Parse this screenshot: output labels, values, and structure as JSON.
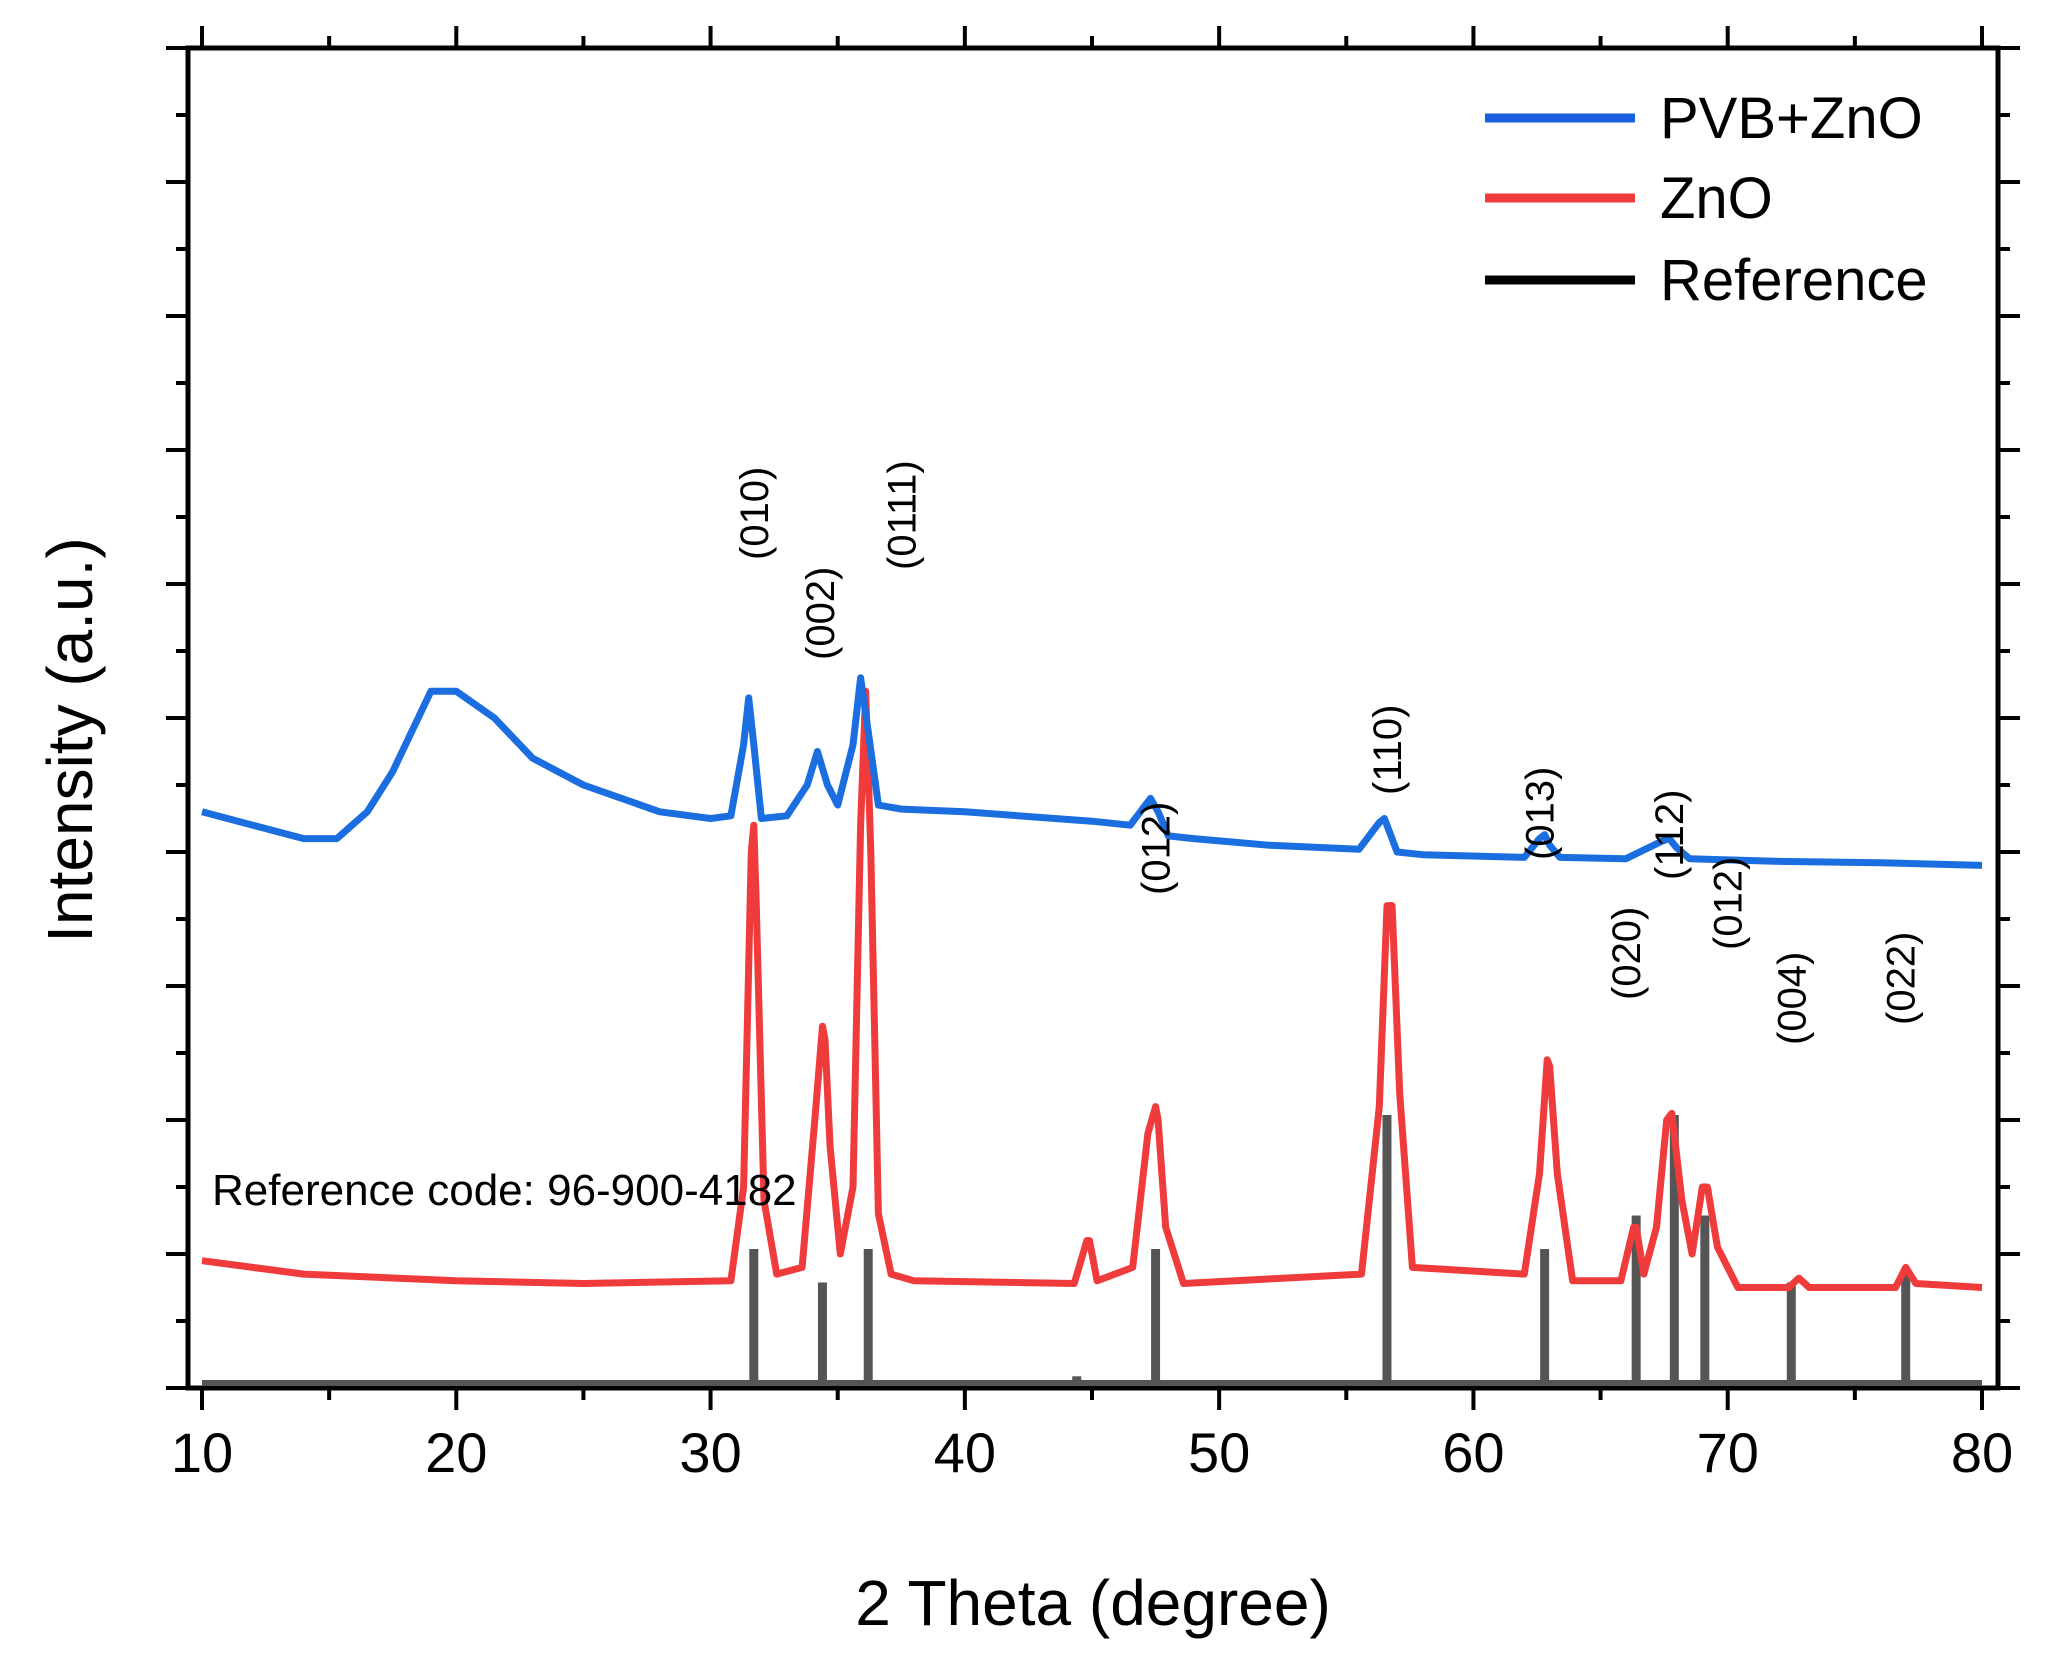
{
  "chart_data": {
    "type": "line",
    "xlabel": "2 Theta (degree)",
    "ylabel": "Intensity (a.u.)",
    "xlim": [
      10,
      80
    ],
    "x_ticks": [
      "10",
      "20",
      "30",
      "40",
      "50",
      "60",
      "70",
      "80"
    ],
    "legend_position": "top-right",
    "legend": [
      {
        "name": "PVB+ZnO",
        "color": "#1a5fe0"
      },
      {
        "name": "ZnO",
        "color": "#ef3b3b"
      },
      {
        "name": "Reference",
        "color": "#000000"
      }
    ],
    "series": [
      {
        "name": "PVB+ZnO",
        "color": "#1a6ee0",
        "x": [
          10,
          12,
          14,
          15.3,
          16.5,
          17.5,
          19,
          20,
          21.5,
          23,
          25,
          28,
          30,
          30.8,
          31.3,
          31.5,
          31.7,
          32,
          33,
          33.8,
          34.2,
          34.6,
          35,
          35.6,
          35.9,
          36.2,
          36.6,
          37.5,
          40,
          45,
          46.5,
          47.3,
          47.6,
          48,
          49,
          52,
          55.5,
          56.3,
          56.5,
          56.7,
          57,
          58,
          62,
          62.6,
          62.8,
          63,
          63.4,
          66,
          67.4,
          67.7,
          68,
          68.5,
          72,
          76,
          80
        ],
        "y": [
          4.3,
          4.2,
          4.1,
          4.1,
          4.3,
          4.6,
          5.2,
          5.2,
          5.0,
          4.7,
          4.5,
          4.3,
          4.25,
          4.27,
          4.8,
          5.15,
          4.8,
          4.25,
          4.27,
          4.5,
          4.75,
          4.5,
          4.35,
          4.8,
          5.3,
          4.9,
          4.35,
          4.32,
          4.3,
          4.23,
          4.2,
          4.4,
          4.3,
          4.12,
          4.1,
          4.05,
          4.02,
          4.22,
          4.25,
          4.15,
          4.0,
          3.98,
          3.96,
          4.1,
          4.13,
          4.05,
          3.96,
          3.95,
          4.08,
          4.1,
          4.03,
          3.95,
          3.93,
          3.92,
          3.9
        ]
      },
      {
        "name": "ZnO",
        "color": "#ef3b3b",
        "x": [
          10,
          14,
          20,
          25,
          30.8,
          31.3,
          31.6,
          31.7,
          31.8,
          32.1,
          32.6,
          33.6,
          34.1,
          34.4,
          34.5,
          34.7,
          35.1,
          35.6,
          35.9,
          36.1,
          36.3,
          36.6,
          37.1,
          38,
          44.3,
          44.8,
          44.9,
          45.2,
          46.6,
          47.2,
          47.5,
          47.6,
          47.9,
          48.6,
          55.6,
          56.3,
          56.6,
          56.8,
          57.1,
          57.6,
          62,
          62.6,
          62.9,
          63,
          63.3,
          63.9,
          65.8,
          66.3,
          66.4,
          66.7,
          67.2,
          67.6,
          67.8,
          68.2,
          68.6,
          69,
          69.2,
          69.6,
          70.4,
          72.4,
          72.8,
          73.2,
          76.6,
          77,
          77.4,
          80
        ],
        "y": [
          0.95,
          0.85,
          0.8,
          0.78,
          0.8,
          1.5,
          4.0,
          4.2,
          3.6,
          1.4,
          0.85,
          0.9,
          2.0,
          2.7,
          2.6,
          1.8,
          1.0,
          1.5,
          4.2,
          5.2,
          4.0,
          1.3,
          0.85,
          0.8,
          0.78,
          1.1,
          1.1,
          0.8,
          0.9,
          1.9,
          2.1,
          2.0,
          1.2,
          0.78,
          0.85,
          2.1,
          3.6,
          3.6,
          2.2,
          0.9,
          0.85,
          1.6,
          2.45,
          2.4,
          1.6,
          0.8,
          0.8,
          1.2,
          1.2,
          0.85,
          1.2,
          2.0,
          2.05,
          1.4,
          1.0,
          1.5,
          1.5,
          1.05,
          0.75,
          0.75,
          0.82,
          0.75,
          0.75,
          0.9,
          0.78,
          0.75
        ]
      }
    ],
    "reference": {
      "name": "Reference",
      "color": "#555555",
      "code_label": "Reference code: 96-900-4182",
      "x": [
        31.7,
        34.4,
        36.2,
        44.4,
        47.5,
        56.6,
        62.8,
        66.4,
        67.9,
        69.1,
        72.5,
        77.0
      ],
      "y": [
        0.2,
        0.15,
        0.2,
        0.01,
        0.2,
        0.4,
        0.2,
        0.25,
        0.4,
        0.25,
        0.15,
        0.17
      ]
    },
    "annotations": [
      {
        "text": "(010)",
        "x": 31.7
      },
      {
        "text": "(002)",
        "x": 34.3
      },
      {
        "text": "(0111)",
        "x": 37.5
      },
      {
        "text": "(012)",
        "x": 47.5
      },
      {
        "text": "(110)",
        "x": 56.6
      },
      {
        "text": "(013)",
        "x": 62.6
      },
      {
        "text": "(020)",
        "x": 66.0
      },
      {
        "text": "(112)",
        "x": 67.7
      },
      {
        "text": "(012)",
        "x": 70.0
      },
      {
        "text": "(004)",
        "x": 72.5
      },
      {
        "text": "(022)",
        "x": 76.8
      }
    ]
  }
}
